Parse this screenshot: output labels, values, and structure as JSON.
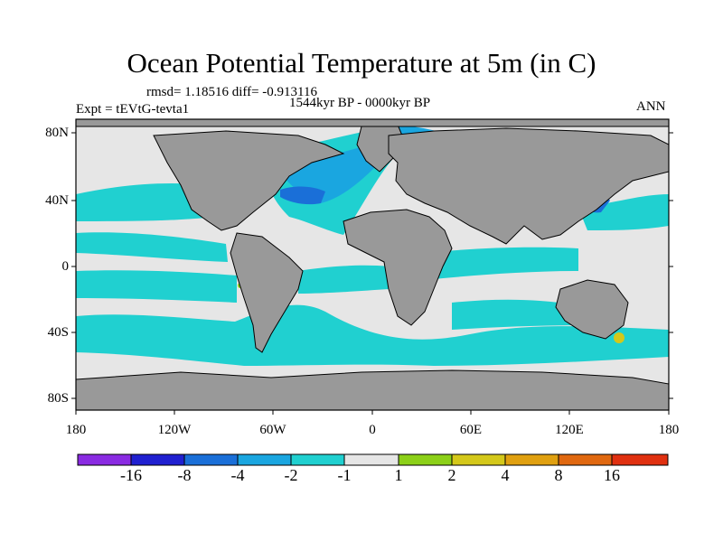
{
  "title": "Ocean Potential Temperature at 5m (in C)",
  "stats": "rmsd= 1.18516 diff= -0.913116",
  "period": "1544kyr BP - 0000kyr BP",
  "expt": "Expt = tEVtG-tevta1",
  "season": "ANN",
  "lat_ticks": [
    "80N",
    "40N",
    "0",
    "40S",
    "80S"
  ],
  "lon_ticks": [
    "180",
    "120W",
    "60W",
    "0",
    "60E",
    "120E",
    "180"
  ],
  "colorbar": {
    "labels": [
      "-16",
      "-8",
      "-4",
      "-2",
      "-1",
      "1",
      "2",
      "4",
      "8",
      "16"
    ],
    "colors": [
      "#8a2be2",
      "#2020d0",
      "#1a6fd8",
      "#1aa6e0",
      "#20d0d0",
      "#e6e6e6",
      "#8cd018",
      "#d4c81a",
      "#e0a010",
      "#e06810",
      "#e03010"
    ]
  },
  "colors": {
    "land": "#999999",
    "neutral": "#e6e6e6",
    "cyan": "#20d0d0",
    "light_blue": "#1aa6e0",
    "blue": "#1a6fd8"
  }
}
